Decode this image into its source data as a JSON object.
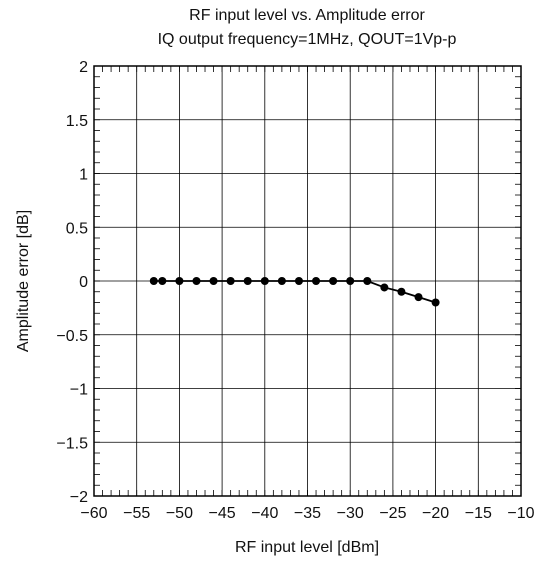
{
  "chart_data": {
    "type": "line",
    "title": "RF input level vs. Amplitude error",
    "subtitle": "IQ output frequency=1MHz, QOUT=1Vp-p",
    "xlabel": "RF input level [dBm]",
    "ylabel": "Amplitude error [dB]",
    "xlim": [
      -60,
      -10
    ],
    "ylim": [
      -2,
      2
    ],
    "x_ticks": [
      -60,
      -55,
      -50,
      -45,
      -40,
      -35,
      -30,
      -25,
      -20,
      -15,
      -10
    ],
    "x_tick_labels": [
      "−60",
      "−55",
      "−50",
      "−45",
      "−40",
      "−35",
      "−30",
      "−25",
      "−20",
      "−15",
      "−10"
    ],
    "y_ticks": [
      -2,
      -1.5,
      -1,
      -0.5,
      0,
      0.5,
      1,
      1.5,
      2
    ],
    "y_tick_labels": [
      "−2",
      "−1.5",
      "−1",
      "−0.5",
      "0",
      "0.5",
      "1",
      "1.5",
      "2"
    ],
    "x_minor_step": 1,
    "y_minor_step": 0.1,
    "grid": true,
    "series": [
      {
        "color": "#000000",
        "marker": "circle",
        "x": [
          -53,
          -52,
          -50,
          -48,
          -46,
          -44,
          -42,
          -40,
          -38,
          -36,
          -34,
          -32,
          -30,
          -28,
          -26,
          -24,
          -22,
          -20
        ],
        "y": [
          0,
          0,
          0,
          0,
          0,
          0,
          0,
          0,
          0,
          0,
          0,
          0,
          0,
          0,
          -0.06,
          -0.1,
          -0.15,
          -0.2
        ]
      }
    ]
  }
}
